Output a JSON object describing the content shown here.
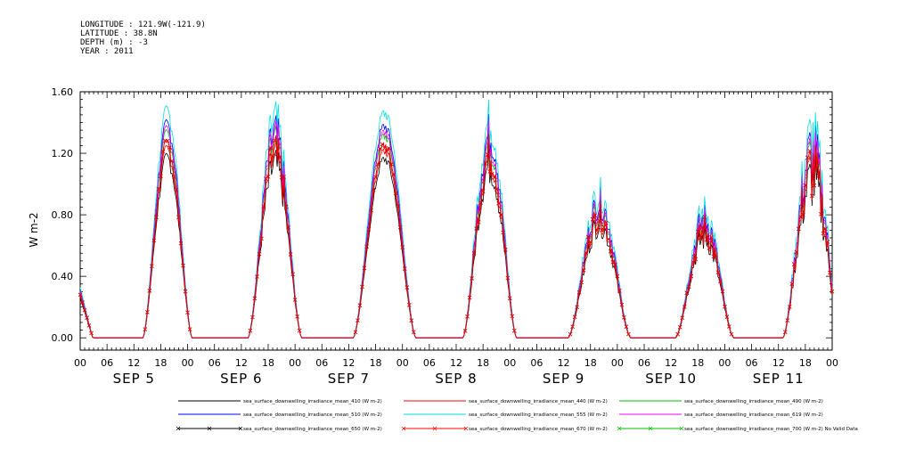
{
  "header": {
    "longitude": "LONGITUDE : 121.9W(-121.9)",
    "latitude": "LATITUDE : 38.8N",
    "depth": "DEPTH (m) : -3",
    "year": "YEAR : 2011"
  },
  "chart_data": {
    "type": "line",
    "title": "",
    "ylabel": "W m-2",
    "xlabel": "",
    "ylim": [
      -0.08,
      1.6
    ],
    "yticks": [
      0.0,
      0.4,
      0.8,
      1.2,
      1.6
    ],
    "ytick_labels": [
      "0.00",
      "0.40",
      "0.80",
      "1.20",
      "1.60"
    ],
    "x_hour_labels": [
      "00",
      "06",
      "12",
      "18",
      "00",
      "06",
      "12",
      "18",
      "00",
      "06",
      "12",
      "18",
      "00",
      "06",
      "12",
      "18",
      "00",
      "06",
      "12",
      "18",
      "00",
      "06",
      "12",
      "18",
      "00",
      "06",
      "12",
      "18",
      "00"
    ],
    "day_labels": [
      "SEP 5",
      "SEP 6",
      "SEP 7",
      "SEP 8",
      "SEP 9",
      "SEP 10",
      "SEP 11"
    ],
    "grid": false,
    "legend_placement": "bottom",
    "daily_peaks": [
      {
        "day": "SEP 5",
        "peak_hour": 19.5,
        "width": 5.5,
        "peak": 1.25,
        "noise": 0.05
      },
      {
        "day": "SEP 6",
        "peak_hour": 19.5,
        "width": 6.0,
        "peak": 1.2,
        "noise": 0.12
      },
      {
        "day": "SEP 7",
        "peak_hour": 20.0,
        "width": 7.0,
        "peak": 1.25,
        "noise": 0.03
      },
      {
        "day": "SEP 8",
        "peak_hour": 19.5,
        "width": 6.0,
        "peak": 1.2,
        "noise": 0.12
      },
      {
        "day": "SEP 9",
        "peak_hour": 20.0,
        "width": 7.0,
        "peak": 0.8,
        "noise": 0.12
      },
      {
        "day": "SEP 10",
        "peak_hour": 19.5,
        "width": 6.5,
        "peak": 0.7,
        "noise": 0.15
      },
      {
        "day": "SEP 11",
        "peak_hour": 19.5,
        "width": 6.5,
        "peak": 1.1,
        "noise": 0.2
      }
    ],
    "series": [
      {
        "name": "sea_surface_downwelling_irradiance_mean_410 (W m-2)",
        "color": "#000000",
        "scale": 0.93,
        "marker": false
      },
      {
        "name": "sea_surface_downwelling_irradiance_mean_440 (W m-2)",
        "color": "#ff0000",
        "scale": 0.97,
        "marker": false
      },
      {
        "name": "sea_surface_downwelling_irradiance_mean_490 (W m-2)",
        "color": "#00c000",
        "scale": 1.05,
        "marker": false
      },
      {
        "name": "sea_surface_downwelling_irradiance_mean_510 (W m-2)",
        "color": "#0000ff",
        "scale": 1.1,
        "marker": false
      },
      {
        "name": "sea_surface_downwelling_irradiance_mean_555 (W m-2)",
        "color": "#00e0e0",
        "scale": 1.17,
        "marker": false
      },
      {
        "name": "sea_surface_downwelling_irradiance_mean_619 (W m-2)",
        "color": "#ff00ff",
        "scale": 1.07,
        "marker": false
      },
      {
        "name": "sea_surface_downwelling_irradiance_mean_650 (W m-2)",
        "color": "#000000",
        "scale": 1.0,
        "marker": true
      },
      {
        "name": "sea_surface_downwelling_irradiance_mean_670 (W m-2)",
        "color": "#ff0000",
        "scale": 1.0,
        "marker": true
      },
      {
        "name": "sea_surface_downwelling_irradiance_mean_700 (W m-2) No Valid Data",
        "color": "#00c000",
        "scale": 0,
        "marker": true
      }
    ]
  }
}
